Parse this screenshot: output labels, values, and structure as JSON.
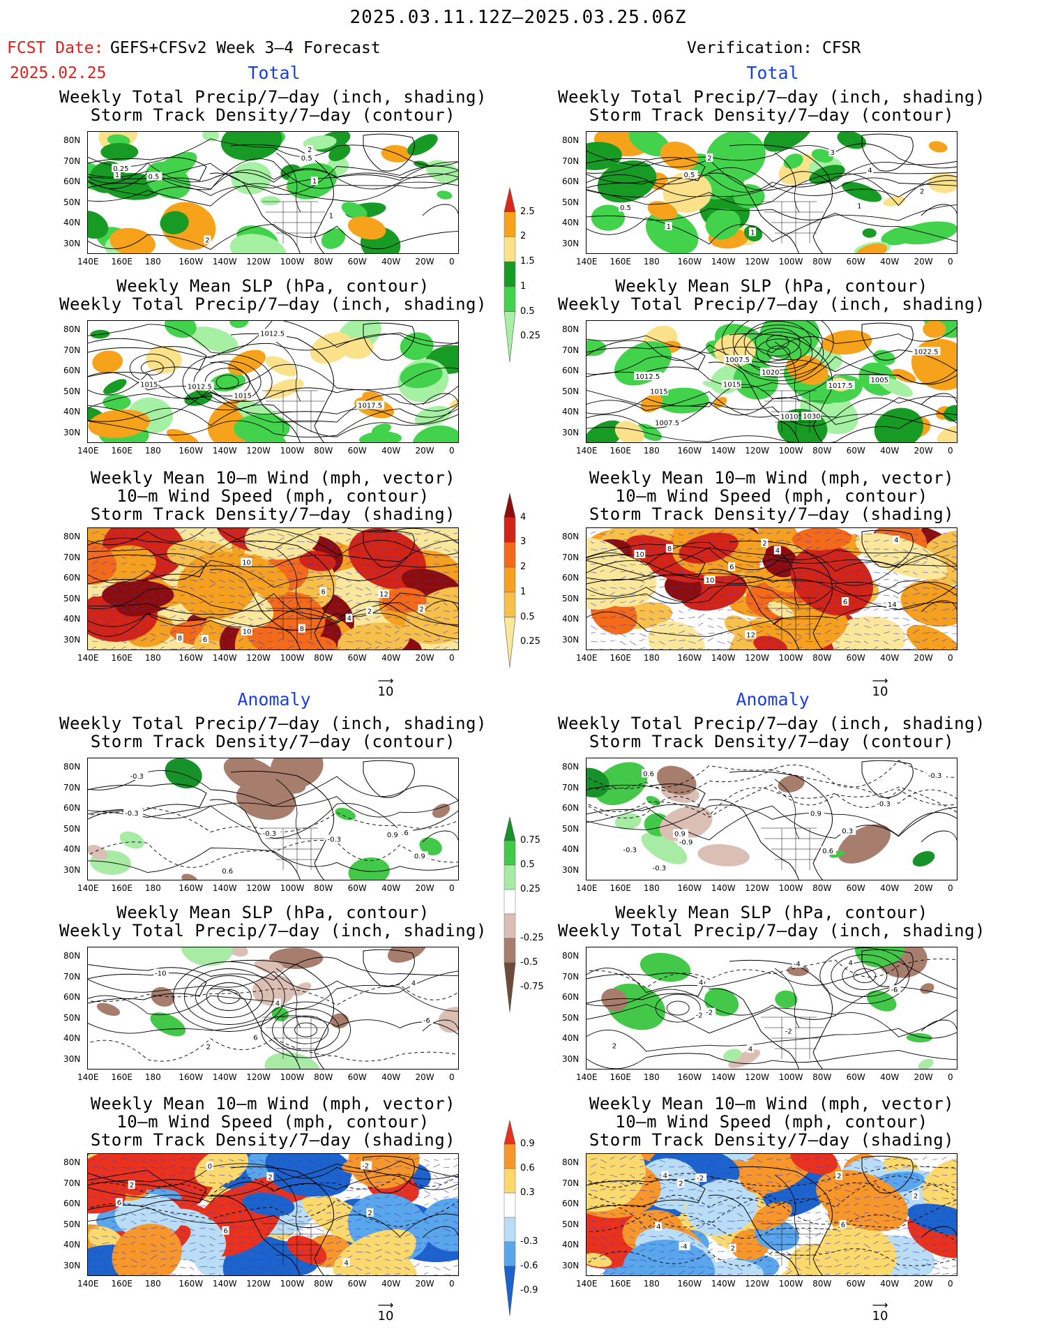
{
  "header": {
    "date_range": "2025.03.11.12Z–2025.03.25.06Z",
    "fcst_label": "FCST Date:",
    "model": "GEFS+CFSv2 Week 3–4 Forecast",
    "fcst_date": "2025.02.25",
    "verification": "Verification: CFSR"
  },
  "sections": {
    "total": "Total",
    "anomaly": "Anomaly"
  },
  "panel_titles": {
    "precip_storm": [
      "Weekly Total Precip/7–day (inch, shading)",
      "Storm Track Density/7–day (contour)"
    ],
    "slp_precip": [
      "Weekly Mean SLP (hPa, contour)",
      "Weekly Total Precip/7–day (inch, shading)"
    ],
    "wind_storm": [
      "Weekly Mean 10–m Wind (mph, vector)",
      "10–m Wind Speed (mph, contour)",
      "Storm Track Density/7–day (shading)"
    ]
  },
  "axes": {
    "lon_ticks": [
      "140E",
      "160E",
      "180",
      "160W",
      "140W",
      "120W",
      "100W",
      "80W",
      "60W",
      "40W",
      "20W",
      "0"
    ],
    "lat_ticks": [
      "80N",
      "70N",
      "60N",
      "50N",
      "40N",
      "30N"
    ]
  },
  "vector_ref": "10",
  "colorbars": {
    "precip": {
      "labels": [
        "2.5",
        "2",
        "1.5",
        "1",
        "0.5",
        "0.25"
      ],
      "colors": [
        "#d62a1c",
        "#f7a21b",
        "#fbe28a",
        "#189b24",
        "#43d24c",
        "#a5f0a2"
      ]
    },
    "storm": {
      "labels": [
        "4",
        "3",
        "2",
        "1",
        "0.5",
        "0.25"
      ],
      "colors": [
        "#8b0d0d",
        "#d32418",
        "#f26a1a",
        "#f5a01e",
        "#f7c04a",
        "#fbe79a"
      ]
    },
    "precip_anom": {
      "labels": [
        "0.75",
        "0.5",
        "0.25",
        "-0.25",
        "-0.5",
        "-0.75"
      ],
      "colors": [
        "#17912a",
        "#43c84a",
        "#a8eba5",
        "#ffffff",
        "#dcbfb4",
        "#a77e6e",
        "#6e4a3a"
      ]
    },
    "storm_anom": {
      "labels": [
        "0.9",
        "0.6",
        "0.3",
        "-0.3",
        "-0.6",
        "-0.9"
      ],
      "colors": [
        "#e8321e",
        "#f7962a",
        "#fcd96c",
        "#ffffff",
        "#b9ddf5",
        "#5aa6ea",
        "#1c63cc"
      ]
    }
  },
  "contour_labels": {
    "p1": [
      "1",
      "2",
      "1",
      "2",
      "0.5",
      "1",
      "0.25",
      "0.5"
    ],
    "p2": [
      "1",
      "2",
      "1",
      "4",
      "1",
      "3",
      "2",
      "0.5",
      "0.5"
    ],
    "p3": [
      "1015",
      "1017.5",
      "1012.5",
      "1015",
      "1012.5"
    ],
    "p4": [
      "1030",
      "1022.5",
      "1020",
      "1017.5",
      "1015",
      "1007.5",
      "1012.5",
      "1010",
      "1015",
      "1007.5",
      "1005"
    ],
    "p5": [
      "2",
      "2",
      "4",
      "10",
      "6",
      "8",
      "10",
      "12",
      "8",
      "6"
    ],
    "p6": [
      "10",
      "12",
      "8",
      "6",
      "4",
      "10",
      "2",
      "6",
      "14",
      "4"
    ],
    "p7": [
      "-0.3",
      "-0.3",
      "-0.6",
      "-0.3",
      "0.3",
      "0.9",
      "0.9",
      "0.6",
      "-0.3"
    ],
    "p8": [
      "0.6",
      "-0.3",
      "0.9",
      "-0.3",
      "-0.3",
      "0.9",
      "-0.3",
      "-0.9",
      "0.6",
      "0.3"
    ],
    "p9": [
      "-6",
      "2",
      "4",
      "6",
      "-10",
      "4"
    ],
    "p10": [
      "4",
      "-2",
      "4",
      "-2",
      "2",
      "-4",
      "-6",
      "4",
      "-2"
    ],
    "p11": [
      "6",
      "2",
      "-2",
      "0",
      "2",
      "4",
      "6",
      "2"
    ],
    "p12": [
      "6",
      "4",
      "2",
      "-2",
      "2",
      "-4",
      "2",
      "2",
      "4"
    ]
  }
}
